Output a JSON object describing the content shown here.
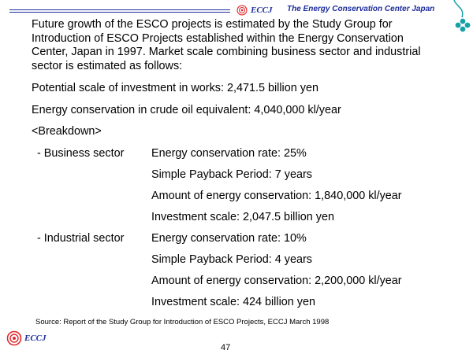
{
  "header": {
    "brand_logo_text": "ECCJ",
    "org_name": "The Energy Conservation Center Japan"
  },
  "intro": "Future growth of the ESCO projects is estimated by the Study Group for Introduction of ESCO Projects established within the Energy Conservation Center, Japan in 1997. Market scale combining business sector and industrial sector is estimated as follows:",
  "potential": "Potential scale of investment in works: 2,471.5 billion yen",
  "crude_oil": "Energy conservation in crude oil equivalent: 4,040,000 kl/year",
  "breakdown_heading": "<Breakdown>",
  "business": {
    "label": "- Business sector",
    "items": [
      "Energy conservation rate: 25%",
      "Simple Payback Period: 7 years",
      "Amount of energy conservation: 1,840,000 kl/year",
      "Investment scale: 2,047.5 billion yen"
    ]
  },
  "industrial": {
    "label": "- Industrial sector",
    "items": [
      "Energy conservation rate: 10%",
      "Simple Payback Period: 4 years",
      "Amount of energy conservation: 2,200,000 kl/year",
      "Investment scale: 424 billion yen"
    ]
  },
  "source": "Source: Report of the Study Group for Introduction of ESCO Projects, ECCJ  March 1998",
  "footer": {
    "brand_logo_text": "ECCJ",
    "page_number": "47"
  },
  "colors": {
    "brand_blue": "#1c2c9a",
    "logo_red": "#e0282c",
    "clover_teal": "#17a0a8"
  }
}
